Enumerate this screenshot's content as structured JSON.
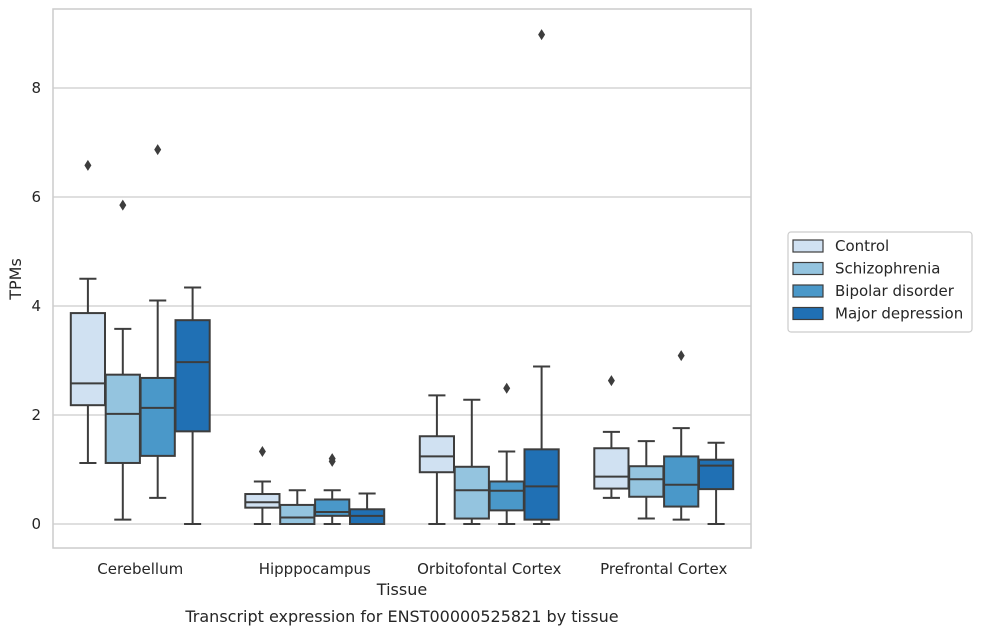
{
  "chart_data": {
    "type": "boxplot",
    "title": "",
    "caption": "Transcript expression for ENST00000525821 by tissue",
    "xlabel": "Tissue",
    "ylabel": "TPMs",
    "ylim": [
      -0.4,
      9.6
    ],
    "yticks": [
      0,
      2,
      4,
      6,
      8
    ],
    "grid": "horizontal",
    "legend_position": "right",
    "categories": [
      "Cerebellum",
      "Hipppocampus",
      "Orbitofontal Cortex",
      "Prefrontal Cortex"
    ],
    "series": [
      {
        "name": "Control",
        "color": "#d0e1f2",
        "boxes": [
          {
            "whisker_low": 1.12,
            "q1": 2.18,
            "median": 2.58,
            "q3": 3.87,
            "whisker_high": 4.5,
            "outliers": [
              6.58
            ]
          },
          {
            "whisker_low": 0.0,
            "q1": 0.3,
            "median": 0.4,
            "q3": 0.55,
            "whisker_high": 0.78,
            "outliers": [
              1.33
            ]
          },
          {
            "whisker_low": 0.0,
            "q1": 0.95,
            "median": 1.24,
            "q3": 1.61,
            "whisker_high": 2.36,
            "outliers": []
          },
          {
            "whisker_low": 0.48,
            "q1": 0.65,
            "median": 0.87,
            "q3": 1.39,
            "whisker_high": 1.69,
            "outliers": [
              2.63
            ]
          }
        ]
      },
      {
        "name": "Schizophrenia",
        "color": "#94c4df",
        "boxes": [
          {
            "whisker_low": 0.08,
            "q1": 1.12,
            "median": 2.02,
            "q3": 2.74,
            "whisker_high": 3.58,
            "outliers": [
              5.85
            ]
          },
          {
            "whisker_low": 0.0,
            "q1": 0.0,
            "median": 0.12,
            "q3": 0.35,
            "whisker_high": 0.62,
            "outliers": []
          },
          {
            "whisker_low": 0.0,
            "q1": 0.1,
            "median": 0.62,
            "q3": 1.05,
            "whisker_high": 2.28,
            "outliers": []
          },
          {
            "whisker_low": 0.1,
            "q1": 0.5,
            "median": 0.82,
            "q3": 1.06,
            "whisker_high": 1.52,
            "outliers": []
          }
        ]
      },
      {
        "name": "Bipolar disorder",
        "color": "#4a98c9",
        "boxes": [
          {
            "whisker_low": 0.48,
            "q1": 1.25,
            "median": 2.13,
            "q3": 2.68,
            "whisker_high": 4.1,
            "outliers": [
              6.87
            ]
          },
          {
            "whisker_low": 0.0,
            "q1": 0.15,
            "median": 0.22,
            "q3": 0.45,
            "whisker_high": 0.62,
            "outliers": [
              1.15,
              1.2
            ]
          },
          {
            "whisker_low": 0.0,
            "q1": 0.25,
            "median": 0.61,
            "q3": 0.78,
            "whisker_high": 1.33,
            "outliers": [
              2.49
            ]
          },
          {
            "whisker_low": 0.08,
            "q1": 0.32,
            "median": 0.72,
            "q3": 1.24,
            "whisker_high": 1.76,
            "outliers": [
              3.09
            ]
          }
        ]
      },
      {
        "name": "Major depression",
        "color": "#2070b4",
        "boxes": [
          {
            "whisker_low": 0.0,
            "q1": 1.7,
            "median": 2.97,
            "q3": 3.74,
            "whisker_high": 4.34,
            "outliers": []
          },
          {
            "whisker_low": 0.0,
            "q1": 0.0,
            "median": 0.15,
            "q3": 0.27,
            "whisker_high": 0.56,
            "outliers": []
          },
          {
            "whisker_low": 0.0,
            "q1": 0.08,
            "median": 0.69,
            "q3": 1.37,
            "whisker_high": 2.89,
            "outliers": [
              8.98
            ]
          },
          {
            "whisker_low": 0.0,
            "q1": 0.64,
            "median": 1.07,
            "q3": 1.18,
            "whisker_high": 1.49,
            "outliers": []
          }
        ]
      }
    ]
  }
}
